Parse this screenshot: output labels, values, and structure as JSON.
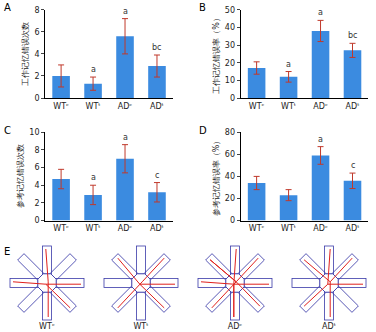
{
  "chart_data": [
    {
      "type": "bar",
      "panel": "A",
      "y_label": "工作记忆错误次数",
      "categories": [
        "WTᶜ",
        "WTᵗ",
        "ADᶜ",
        "ADᵗ"
      ],
      "values": [
        2.0,
        1.3,
        5.6,
        2.9
      ],
      "errors": [
        1.0,
        0.6,
        1.6,
        1.0
      ],
      "letters": [
        null,
        "a",
        "a",
        "bc"
      ],
      "color": "#3b8be0",
      "ylim": [
        0,
        8
      ],
      "yticks": [
        0,
        2,
        4,
        6,
        8
      ]
    },
    {
      "type": "bar",
      "panel": "B",
      "y_label": "工作记忆错误率（%）",
      "categories": [
        "WTᶜ",
        "WTᵗ",
        "ADᶜ",
        "ADᵗ"
      ],
      "values": [
        17,
        12,
        38,
        27
      ],
      "errors": [
        3.5,
        3,
        6,
        4
      ],
      "letters": [
        null,
        "a",
        "a",
        "bc"
      ],
      "color": "#3b8be0",
      "ylim": [
        0,
        50
      ],
      "yticks": [
        0,
        10,
        20,
        30,
        40,
        50
      ]
    },
    {
      "type": "bar",
      "panel": "C",
      "y_label": "参考记忆错误次数",
      "categories": [
        "WTᶜ",
        "WTᵗ",
        "ADᶜ",
        "ADᵗ"
      ],
      "values": [
        4.7,
        2.9,
        7.0,
        3.2
      ],
      "errors": [
        1.1,
        1.1,
        1.6,
        1.1
      ],
      "letters": [
        null,
        "a",
        "a",
        "c"
      ],
      "color": "#3b8be0",
      "ylim": [
        0,
        10
      ],
      "yticks": [
        0,
        2,
        4,
        6,
        8,
        10
      ]
    },
    {
      "type": "bar",
      "panel": "D",
      "y_label": "参考记忆错误率（%）",
      "categories": [
        "WTᶜ",
        "WTᵗ",
        "ADᶜ",
        "ADᵗ"
      ],
      "values": [
        34,
        23,
        59,
        36
      ],
      "errors": [
        6,
        5,
        8,
        7
      ],
      "letters": [
        null,
        null,
        "a",
        "c"
      ],
      "color": "#3b8be0",
      "ylim": [
        0,
        80
      ],
      "yticks": [
        0,
        20,
        40,
        60,
        80
      ]
    }
  ],
  "maze_panel": {
    "panel": "E",
    "labels": [
      "WTᶜ",
      "WTᵗ",
      "ADᶜ",
      "ADᵗ"
    ]
  }
}
